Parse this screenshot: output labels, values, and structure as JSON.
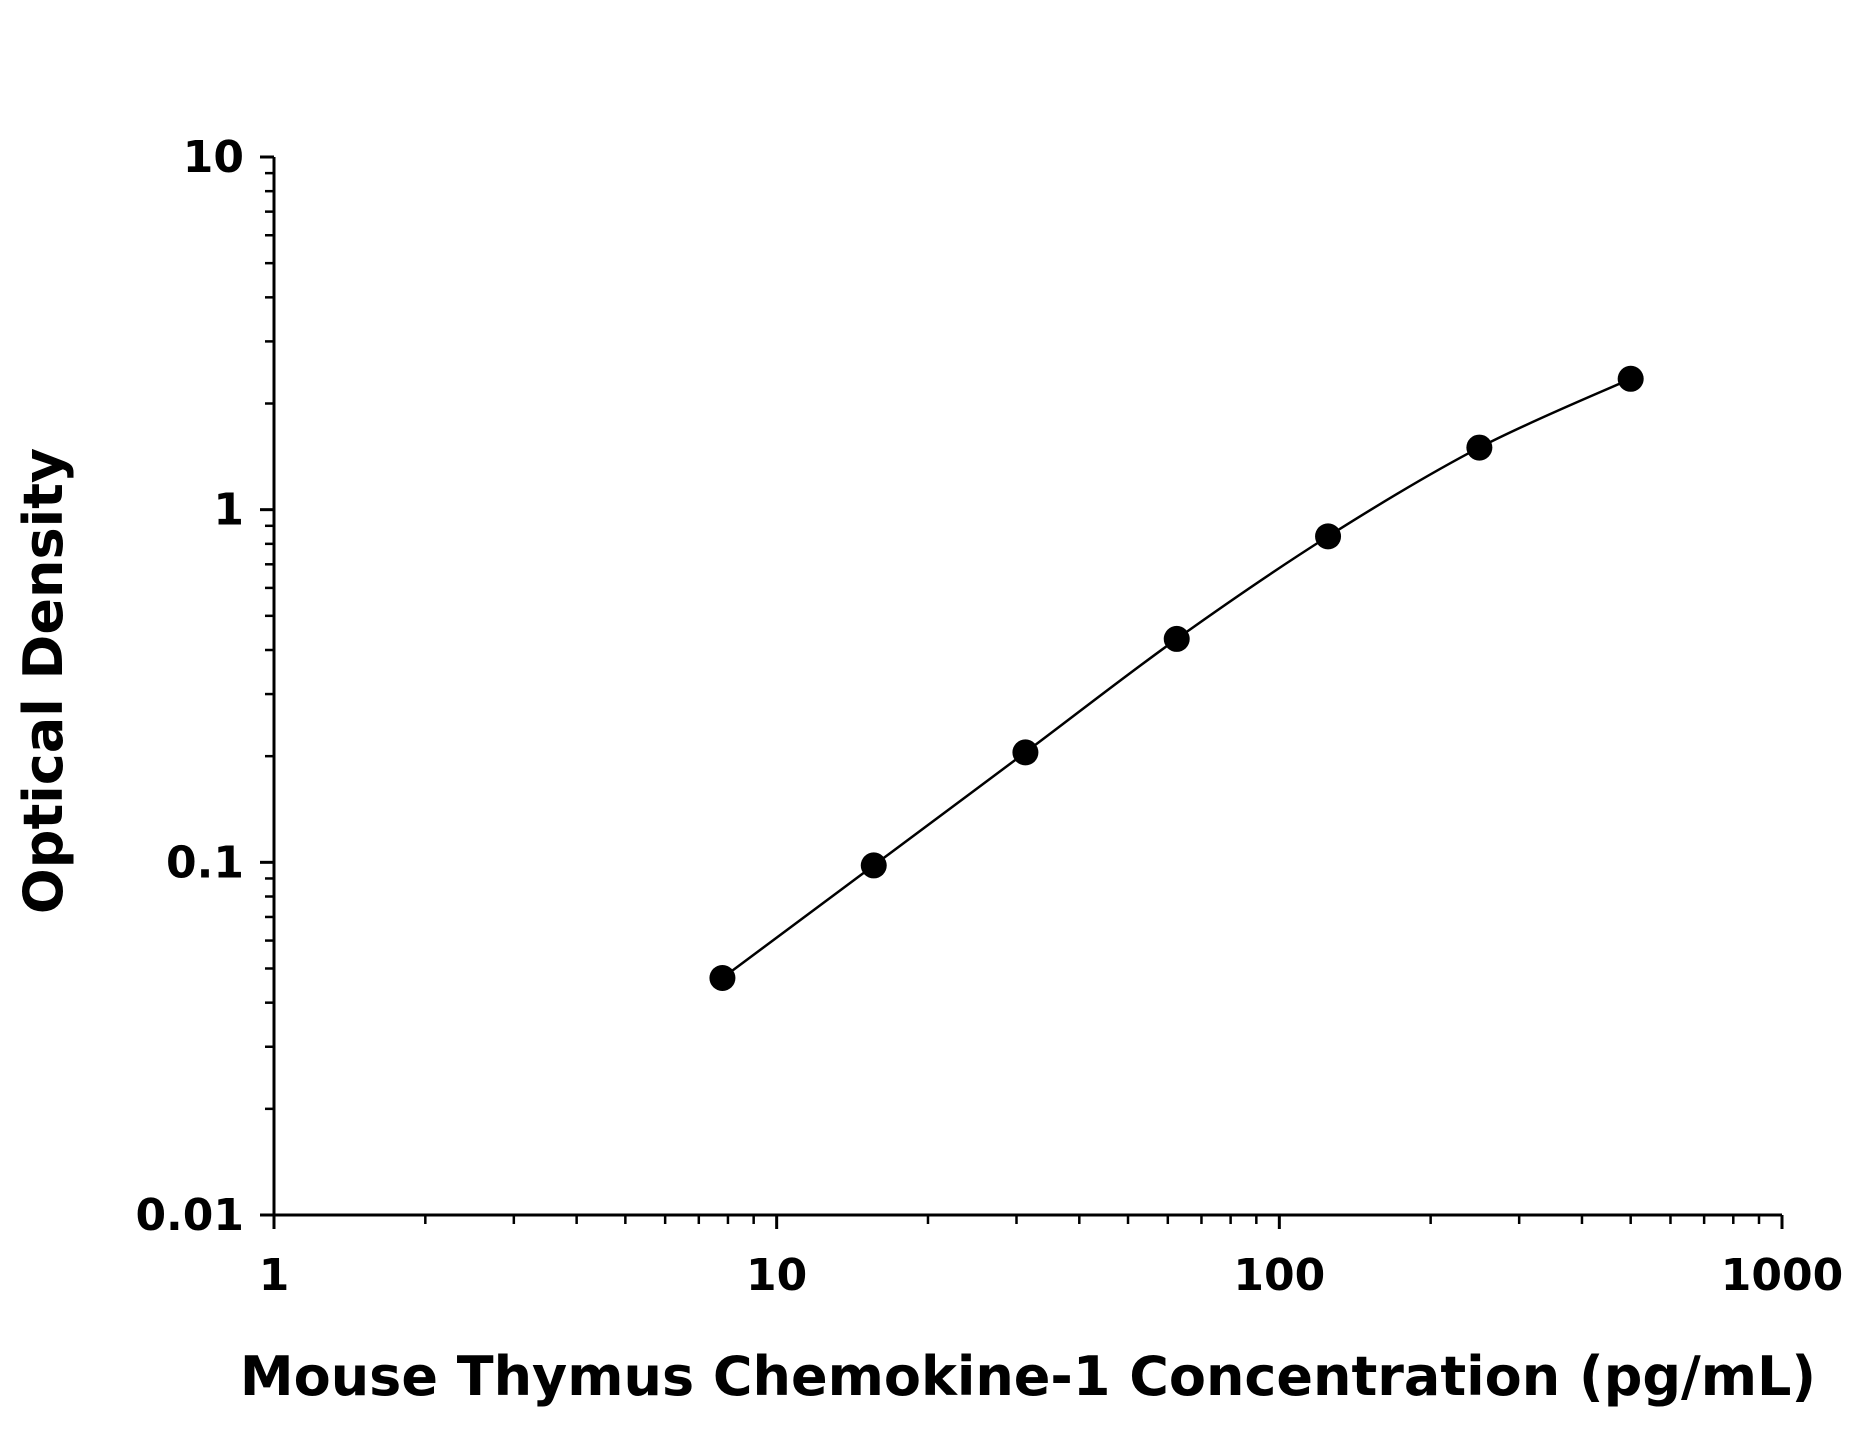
{
  "chart_data": {
    "type": "scatter",
    "xlabel": "Mouse Thymus Chemokine-1 Concentration (pg/mL)",
    "ylabel": "Optical Density",
    "xscale": "log",
    "yscale": "log",
    "xlim": [
      1,
      1000
    ],
    "ylim": [
      0.01,
      10
    ],
    "x_ticks": [
      "1",
      "10",
      "100",
      "1000"
    ],
    "y_ticks": [
      "0.01",
      "0.1",
      "1",
      "10"
    ],
    "grid": false,
    "series": [
      {
        "points": [
          {
            "x": 7.8,
            "y": 0.047
          },
          {
            "x": 15.6,
            "y": 0.098
          },
          {
            "x": 31.25,
            "y": 0.205
          },
          {
            "x": 62.5,
            "y": 0.43
          },
          {
            "x": 125,
            "y": 0.84
          },
          {
            "x": 250,
            "y": 1.5
          },
          {
            "x": 500,
            "y": 2.35
          }
        ],
        "marker": "filled-circle",
        "color": "#000000",
        "fit_curve": true
      }
    ]
  }
}
